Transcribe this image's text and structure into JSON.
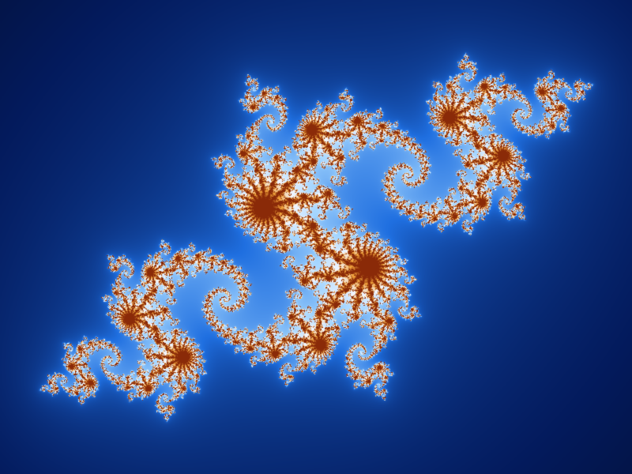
{
  "image": {
    "subject": "",
    "palette": {
      "background": "#02040c",
      "deep": "#031a5c",
      "mid": "#1f6fe0",
      "light": "#9fd3ff",
      "white": "#f4f7ff",
      "gold": "#f0a13a",
      "core": "#8a2a08"
    },
    "fractal": {
      "c_re": -0.8,
      "c_im": 0.156,
      "max_iter": 220,
      "rotation_deg": 26
    }
  }
}
